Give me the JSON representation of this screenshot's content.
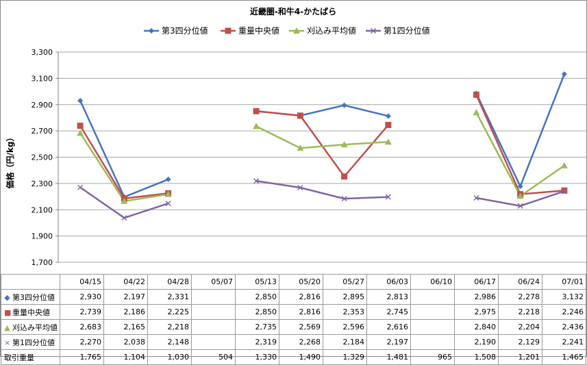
{
  "chart_data": {
    "type": "line",
    "title": "近畿圏-和牛4-かたばら",
    "ylabel": "価格（円/kg）",
    "ylim": [
      1700,
      3300
    ],
    "yticks": [
      "1,700",
      "1,900",
      "2,100",
      "2,300",
      "2,500",
      "2,700",
      "2,900",
      "3,100",
      "3,300"
    ],
    "ytick_values": [
      1700,
      1900,
      2100,
      2300,
      2500,
      2700,
      2900,
      3100,
      3300
    ],
    "categories": [
      "04/15",
      "04/22",
      "04/28",
      "05/07",
      "05/13",
      "05/20",
      "05/27",
      "06/03",
      "06/10",
      "06/17",
      "06/24",
      "07/01"
    ],
    "legend_position": "top",
    "series": [
      {
        "name": "第3四分位値",
        "color": "#4472C4",
        "marker": "diamond",
        "marker_glyph": "◆",
        "values": [
          2930,
          2197,
          2331,
          null,
          2850,
          2816,
          2895,
          2813,
          null,
          2986,
          2278,
          3132
        ],
        "labels": [
          "2,930",
          "2,197",
          "2,331",
          "",
          "2,850",
          "2,816",
          "2,895",
          "2,813",
          "",
          "2,986",
          "2,278",
          "3,132"
        ]
      },
      {
        "name": "重量中央値",
        "color": "#C0504D",
        "marker": "square",
        "marker_glyph": "■",
        "values": [
          2739,
          2186,
          2225,
          null,
          2850,
          2816,
          2353,
          2745,
          null,
          2975,
          2218,
          2246
        ],
        "labels": [
          "2,739",
          "2,186",
          "2,225",
          "",
          "2,850",
          "2,816",
          "2,353",
          "2,745",
          "",
          "2,975",
          "2,218",
          "2,246"
        ]
      },
      {
        "name": "刈込み平均値",
        "color": "#9BBB59",
        "marker": "triangle",
        "marker_glyph": "▲",
        "values": [
          2683,
          2165,
          2218,
          null,
          2735,
          2569,
          2596,
          2616,
          null,
          2840,
          2204,
          2436
        ],
        "labels": [
          "2,683",
          "2,165",
          "2,218",
          "",
          "2,735",
          "2,569",
          "2,596",
          "2,616",
          "",
          "2,840",
          "2,204",
          "2,436"
        ]
      },
      {
        "name": "第1四分位値",
        "color": "#8064A2",
        "marker": "x",
        "marker_glyph": "×",
        "values": [
          2270,
          2038,
          2148,
          null,
          2319,
          2268,
          2184,
          2197,
          null,
          2190,
          2129,
          2241
        ],
        "labels": [
          "2,270",
          "2,038",
          "2,148",
          "",
          "2,319",
          "2,268",
          "2,184",
          "2,197",
          "",
          "2,190",
          "2,129",
          "2,241"
        ]
      }
    ],
    "volume_row": {
      "name": "取引重量",
      "labels": [
        "1,765",
        "1,104",
        "1,030",
        "504",
        "1,330",
        "1,490",
        "1,329",
        "1,481",
        "965",
        "1,508",
        "1,201",
        "1,465"
      ]
    }
  }
}
